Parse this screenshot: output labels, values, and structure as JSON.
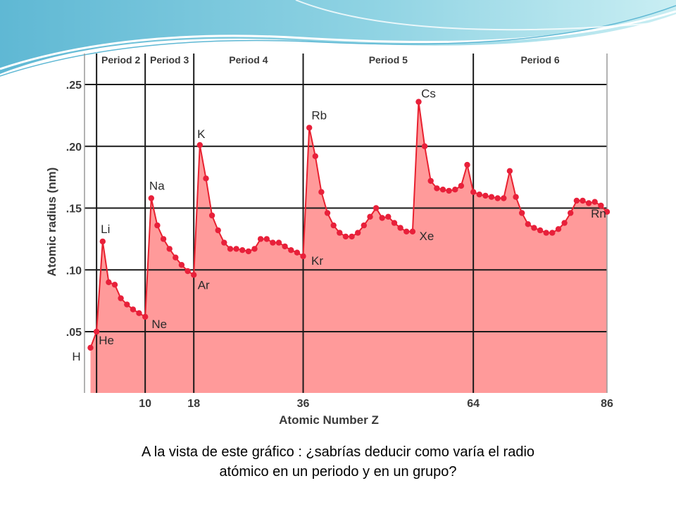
{
  "caption": {
    "line1": "A la vista de este gráfico : ¿sabrías deducir como varía el radio",
    "line2": "atómico en un periodo y en un grupo?"
  },
  "colors": {
    "fill": "#ff9a9a",
    "line": "#e8202f",
    "point": "#e8203a",
    "grid": "#1a1a1a",
    "header_light": "#bde8f0",
    "header_dark": "#4fb3cf"
  },
  "chart_data": {
    "type": "area",
    "title": "",
    "xlabel": "Atomic Number Z",
    "ylabel": "Atomic radius (nm)",
    "xlim": [
      0,
      86
    ],
    "ylim": [
      0,
      0.27
    ],
    "x_ticks": [
      10,
      18,
      36,
      64,
      86
    ],
    "x_tick_labels": [
      "10",
      "18",
      "36",
      "64",
      "86"
    ],
    "y_ticks": [
      0.05,
      0.1,
      0.15,
      0.2,
      0.25
    ],
    "y_tick_labels": [
      ".05",
      ".10",
      ".15",
      ".20",
      ".25"
    ],
    "grid": true,
    "periods": [
      {
        "label": "Period 2",
        "start": 2,
        "end": 10
      },
      {
        "label": "Period 3",
        "start": 10,
        "end": 18
      },
      {
        "label": "Period 4",
        "start": 18,
        "end": 36
      },
      {
        "label": "Period 5",
        "start": 36,
        "end": 64
      },
      {
        "label": "Period 6",
        "start": 64,
        "end": 86
      }
    ],
    "series": [
      {
        "x": [
          1,
          2,
          3,
          4,
          5,
          6,
          7,
          8,
          9,
          10,
          11,
          12,
          13,
          14,
          15,
          16,
          17,
          18,
          19,
          20,
          21,
          22,
          23,
          24,
          25,
          26,
          27,
          28,
          29,
          30,
          31,
          32,
          33,
          34,
          35,
          36,
          37,
          38,
          39,
          40,
          41,
          42,
          43,
          44,
          45,
          46,
          47,
          48,
          49,
          50,
          51,
          52,
          53,
          54,
          55,
          56,
          57,
          58,
          59,
          60,
          61,
          62,
          63,
          64,
          65,
          66,
          67,
          68,
          69,
          70,
          71,
          72,
          73,
          74,
          75,
          76,
          77,
          78,
          79,
          80,
          81,
          82,
          83,
          84,
          85,
          86
        ],
        "y": [
          0.037,
          0.05,
          0.123,
          0.09,
          0.088,
          0.077,
          0.072,
          0.068,
          0.065,
          0.062,
          0.158,
          0.136,
          0.125,
          0.117,
          0.11,
          0.104,
          0.099,
          0.096,
          0.201,
          0.174,
          0.144,
          0.132,
          0.122,
          0.117,
          0.117,
          0.116,
          0.115,
          0.117,
          0.125,
          0.125,
          0.122,
          0.122,
          0.119,
          0.116,
          0.114,
          0.111,
          0.215,
          0.192,
          0.163,
          0.146,
          0.136,
          0.13,
          0.127,
          0.127,
          0.13,
          0.136,
          0.143,
          0.15,
          0.142,
          0.143,
          0.138,
          0.134,
          0.131,
          0.131,
          0.236,
          0.2,
          0.172,
          0.166,
          0.165,
          0.164,
          0.165,
          0.168,
          0.185,
          0.163,
          0.161,
          0.16,
          0.159,
          0.158,
          0.158,
          0.18,
          0.159,
          0.146,
          0.137,
          0.134,
          0.132,
          0.13,
          0.13,
          0.133,
          0.138,
          0.146,
          0.156,
          0.156,
          0.154,
          0.155,
          0.152,
          0.147
        ]
      }
    ],
    "element_labels": [
      {
        "text": "H",
        "x": 1
      },
      {
        "text": "He",
        "x": 2
      },
      {
        "text": "Li",
        "x": 3
      },
      {
        "text": "Ne",
        "x": 10
      },
      {
        "text": "Na",
        "x": 11
      },
      {
        "text": "Ar",
        "x": 18
      },
      {
        "text": "K",
        "x": 19
      },
      {
        "text": "Kr",
        "x": 36
      },
      {
        "text": "Rb",
        "x": 37
      },
      {
        "text": "Xe",
        "x": 54
      },
      {
        "text": "Cs",
        "x": 55
      },
      {
        "text": "Rn",
        "x": 86
      }
    ]
  }
}
